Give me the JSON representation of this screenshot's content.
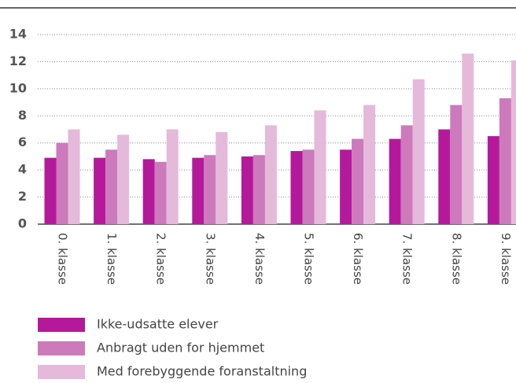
{
  "chart_data": {
    "type": "bar",
    "categories": [
      "0. klasse",
      "1. klasse",
      "2. klasse",
      "3. klasse",
      "4. klasse",
      "5. klasse",
      "6. klasse",
      "7. klasse",
      "8. klasse",
      "9. klasse"
    ],
    "series": [
      {
        "name": "Ikke-udsatte elever",
        "color": "#b5199b",
        "values": [
          4.9,
          4.9,
          4.8,
          4.9,
          5.0,
          5.4,
          5.5,
          6.3,
          7.0,
          6.5
        ]
      },
      {
        "name": "Anbragt uden for hjemmet",
        "color": "#cc7abb",
        "values": [
          6.0,
          5.5,
          4.6,
          5.1,
          5.1,
          5.5,
          6.3,
          7.3,
          8.8,
          9.3
        ]
      },
      {
        "name": "Med forebyggende foranstaltning",
        "color": "#e5b9da",
        "values": [
          7.0,
          6.6,
          7.0,
          6.8,
          7.3,
          8.4,
          8.8,
          10.7,
          12.6,
          12.1
        ]
      }
    ],
    "ylim": [
      0,
      14
    ],
    "yticks": [
      0,
      2,
      4,
      6,
      8,
      10,
      12,
      14
    ],
    "grid": true
  }
}
